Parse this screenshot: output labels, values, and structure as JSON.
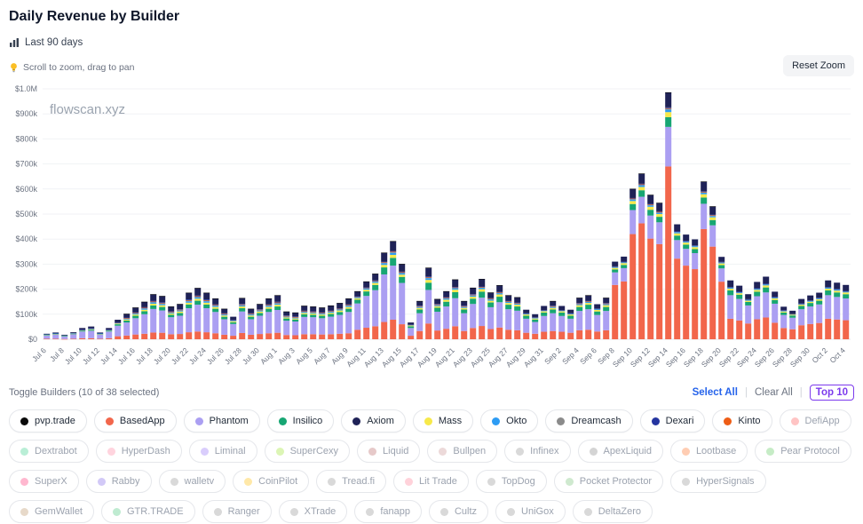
{
  "header": {
    "title": "Daily Revenue by Builder",
    "range_label": "Last 90 days",
    "hint": "Scroll to zoom, drag to pan",
    "reset_zoom_label": "Reset Zoom"
  },
  "watermark": "flowscan.xyz",
  "chart_data": {
    "type": "bar",
    "stacked": true,
    "title": "Daily Revenue by Builder",
    "xlabel": "",
    "ylabel": "",
    "ylim": [
      0,
      1000000
    ],
    "values_unit": "USD thousands",
    "grid": true,
    "y_tick_labels": [
      "$0",
      "$100k",
      "$200k",
      "$300k",
      "$400k",
      "$500k",
      "$600k",
      "$700k",
      "$800k",
      "$900k",
      "$1.0M"
    ],
    "x_tick_every": 2,
    "x": [
      "Jul 6",
      "Jul 7",
      "Jul 8",
      "Jul 9",
      "Jul 10",
      "Jul 11",
      "Jul 12",
      "Jul 13",
      "Jul 14",
      "Jul 15",
      "Jul 16",
      "Jul 17",
      "Jul 18",
      "Jul 19",
      "Jul 20",
      "Jul 21",
      "Jul 22",
      "Jul 23",
      "Jul 24",
      "Jul 25",
      "Jul 26",
      "Jul 27",
      "Jul 28",
      "Jul 29",
      "Jul 30",
      "Jul 31",
      "Aug 1",
      "Aug 2",
      "Aug 3",
      "Aug 4",
      "Aug 5",
      "Aug 6",
      "Aug 7",
      "Aug 8",
      "Aug 9",
      "Aug 10",
      "Aug 11",
      "Aug 12",
      "Aug 13",
      "Aug 14",
      "Aug 15",
      "Aug 16",
      "Aug 17",
      "Aug 18",
      "Aug 19",
      "Aug 20",
      "Aug 21",
      "Aug 22",
      "Aug 23",
      "Aug 24",
      "Aug 25",
      "Aug 26",
      "Aug 27",
      "Aug 28",
      "Aug 29",
      "Aug 30",
      "Aug 31",
      "Sep 1",
      "Sep 2",
      "Sep 3",
      "Sep 4",
      "Sep 5",
      "Sep 6",
      "Sep 7",
      "Sep 8",
      "Sep 9",
      "Sep 10",
      "Sep 11",
      "Sep 12",
      "Sep 13",
      "Sep 14",
      "Sep 15",
      "Sep 16",
      "Sep 17",
      "Sep 18",
      "Sep 19",
      "Sep 20",
      "Sep 21",
      "Sep 22",
      "Sep 23",
      "Sep 24",
      "Sep 25",
      "Sep 26",
      "Sep 27",
      "Sep 28",
      "Sep 29",
      "Sep 30",
      "Oct 1",
      "Oct 2",
      "Oct 3",
      "Oct 4"
    ],
    "stack_order_bottom_to_top": [
      "BasedApp",
      "Phantom",
      "Insilico",
      "Mass",
      "Okto",
      "Dreamcash",
      "Kinto",
      "Dexari",
      "Axiom",
      "pvp.trade"
    ],
    "series": [
      {
        "name": "BasedApp",
        "color": "#f2664b",
        "values": [
          2,
          2,
          1,
          2,
          4,
          4,
          2,
          4,
          12,
          15,
          19,
          22,
          27,
          26,
          20,
          21,
          28,
          31,
          28,
          24,
          18,
          14,
          25,
          18,
          21,
          24,
          26,
          17,
          16,
          20,
          20,
          19,
          20,
          22,
          24,
          38,
          46,
          52,
          69,
          78,
          60,
          14,
          33,
          63,
          35,
          42,
          52,
          33,
          45,
          53,
          41,
          47,
          38,
          36,
          26,
          22,
          30,
          33,
          30,
          26,
          36,
          38,
          31,
          36,
          217,
          231,
          420,
          463,
          402,
          380,
          690,
          322,
          294,
          280,
          440,
          370,
          230,
          82,
          75,
          63,
          80,
          87,
          66,
          45,
          40,
          56,
          61,
          65,
          82,
          79,
          76
        ]
      },
      {
        "name": "Phantom",
        "color": "#ab9ff2",
        "values": [
          13,
          17,
          11,
          18,
          27,
          30,
          17,
          27,
          42,
          52,
          65,
          78,
          94,
          89,
          68,
          73,
          96,
          107,
          96,
          85,
          62,
          47,
          86,
          62,
          73,
          85,
          91,
          57,
          55,
          69,
          68,
          65,
          70,
          75,
          85,
          105,
          127,
          144,
          190,
          216,
          165,
          31,
          71,
          134,
          75,
          89,
          112,
          71,
          96,
          113,
          87,
          101,
          82,
          78,
          56,
          47,
          63,
          71,
          63,
          56,
          77,
          82,
          66,
          77,
          50,
          53,
          96,
          106,
          92,
          87,
          158,
          74,
          67,
          64,
          101,
          85,
          53,
          94,
          86,
          72,
          92,
          100,
          76,
          52,
          46,
          64,
          70,
          74,
          94,
          90,
          87
        ]
      },
      {
        "name": "Insilico",
        "color": "#17a673",
        "values": [
          2,
          2,
          1,
          2,
          3,
          4,
          2,
          3,
          6,
          8,
          10,
          12,
          14,
          14,
          10,
          11,
          15,
          16,
          15,
          13,
          10,
          7,
          13,
          10,
          11,
          13,
          14,
          9,
          8,
          11,
          10,
          10,
          11,
          12,
          13,
          15,
          18,
          21,
          28,
          31,
          24,
          7,
          15,
          29,
          16,
          19,
          24,
          15,
          21,
          24,
          19,
          22,
          18,
          17,
          12,
          10,
          14,
          15,
          14,
          12,
          16,
          18,
          14,
          16,
          12,
          13,
          24,
          26,
          23,
          22,
          39,
          18,
          17,
          16,
          25,
          21,
          13,
          19,
          17,
          14,
          18,
          20,
          15,
          10,
          9,
          13,
          14,
          15,
          19,
          18,
          17
        ]
      },
      {
        "name": "Axiom",
        "color": "#1f2257",
        "values": [
          3,
          4,
          3,
          4,
          6,
          7,
          4,
          6,
          11,
          14,
          18,
          21,
          25,
          24,
          18,
          20,
          26,
          29,
          26,
          23,
          17,
          13,
          23,
          17,
          20,
          23,
          25,
          15,
          15,
          19,
          18,
          18,
          19,
          20,
          23,
          19,
          23,
          26,
          35,
          39,
          30,
          8,
          18,
          34,
          19,
          23,
          29,
          18,
          25,
          29,
          22,
          26,
          21,
          20,
          14,
          12,
          16,
          18,
          16,
          14,
          20,
          21,
          17,
          20,
          19,
          20,
          36,
          40,
          35,
          33,
          59,
          28,
          25,
          24,
          38,
          32,
          20,
          26,
          24,
          20,
          25,
          28,
          21,
          14,
          13,
          18,
          19,
          20,
          26,
          25,
          24
        ]
      },
      {
        "name": "Mass",
        "color": "#f7e94a",
        "values": [
          1,
          1,
          1,
          1,
          2,
          2,
          1,
          2,
          3,
          4,
          5,
          6,
          7,
          7,
          5,
          6,
          7,
          8,
          7,
          7,
          5,
          4,
          7,
          5,
          6,
          7,
          7,
          4,
          4,
          5,
          5,
          5,
          5,
          6,
          7,
          6,
          7,
          8,
          10,
          12,
          9,
          3,
          6,
          11,
          6,
          8,
          10,
          6,
          8,
          10,
          7,
          9,
          7,
          7,
          5,
          4,
          5,
          6,
          5,
          5,
          7,
          7,
          6,
          7,
          6,
          7,
          12,
          13,
          12,
          11,
          20,
          9,
          8,
          8,
          13,
          11,
          7,
          7,
          6,
          5,
          7,
          8,
          6,
          4,
          3,
          5,
          5,
          6,
          7,
          7,
          7
        ]
      },
      {
        "name": "Okto",
        "color": "#2d9cf4",
        "values": [
          1,
          1,
          1,
          1,
          1,
          2,
          1,
          1,
          2,
          3,
          4,
          5,
          5,
          5,
          4,
          4,
          6,
          6,
          6,
          5,
          4,
          3,
          5,
          4,
          4,
          5,
          5,
          3,
          3,
          4,
          4,
          4,
          4,
          4,
          5,
          4,
          5,
          5,
          7,
          8,
          6,
          2,
          4,
          7,
          4,
          5,
          6,
          4,
          5,
          6,
          5,
          5,
          4,
          4,
          3,
          3,
          3,
          4,
          3,
          3,
          4,
          4,
          4,
          4,
          3,
          3,
          6,
          7,
          6,
          5,
          10,
          5,
          4,
          4,
          6,
          5,
          3,
          5,
          4,
          4,
          5,
          5,
          4,
          3,
          2,
          3,
          4,
          4,
          5,
          5,
          4
        ]
      },
      {
        "name": "Dreamcash",
        "color": "#8b8b8b",
        "values": [
          0,
          0,
          0,
          0,
          1,
          1,
          0,
          1,
          1,
          2,
          2,
          2,
          3,
          3,
          2,
          2,
          3,
          3,
          3,
          2,
          2,
          1,
          2,
          2,
          2,
          2,
          3,
          2,
          2,
          2,
          2,
          2,
          2,
          2,
          2,
          2,
          2,
          3,
          3,
          4,
          3,
          1,
          2,
          3,
          2,
          2,
          2,
          2,
          2,
          2,
          2,
          2,
          2,
          2,
          1,
          1,
          1,
          2,
          1,
          1,
          2,
          2,
          1,
          2,
          2,
          2,
          3,
          3,
          3,
          3,
          5,
          2,
          2,
          2,
          3,
          3,
          2,
          1,
          1,
          1,
          1,
          1,
          1,
          1,
          1,
          1,
          1,
          1,
          1,
          1,
          1
        ]
      },
      {
        "name": "Dexari",
        "color": "#2535a0",
        "values": [
          0,
          0,
          0,
          0,
          1,
          1,
          0,
          1,
          1,
          2,
          2,
          2,
          3,
          3,
          2,
          2,
          3,
          3,
          3,
          2,
          2,
          1,
          2,
          2,
          2,
          2,
          3,
          2,
          2,
          2,
          2,
          2,
          2,
          2,
          2,
          1,
          1,
          1,
          2,
          2,
          2,
          1,
          2,
          3,
          2,
          2,
          2,
          2,
          2,
          2,
          2,
          2,
          2,
          2,
          1,
          1,
          1,
          2,
          1,
          1,
          2,
          2,
          1,
          2,
          1,
          1,
          2,
          2,
          2,
          2,
          3,
          1,
          1,
          1,
          2,
          2,
          1,
          1,
          1,
          1,
          1,
          1,
          1,
          1,
          0,
          1,
          1,
          1,
          1,
          1,
          1
        ]
      },
      {
        "name": "Kinto",
        "color": "#ee5d16",
        "values": [
          0,
          0,
          0,
          0,
          0,
          0,
          0,
          0,
          0,
          1,
          1,
          1,
          1,
          1,
          1,
          1,
          1,
          1,
          1,
          1,
          1,
          0,
          1,
          1,
          1,
          1,
          1,
          1,
          1,
          1,
          1,
          1,
          1,
          1,
          1,
          1,
          1,
          1,
          1,
          1,
          1,
          0,
          1,
          1,
          1,
          1,
          1,
          1,
          1,
          1,
          1,
          1,
          1,
          1,
          0,
          0,
          0,
          1,
          0,
          0,
          1,
          1,
          0,
          1,
          0,
          0,
          1,
          1,
          1,
          1,
          1,
          0,
          0,
          0,
          1,
          1,
          0,
          0,
          0,
          0,
          0,
          0,
          0,
          0,
          0,
          0,
          0,
          0,
          0,
          0,
          0
        ]
      },
      {
        "name": "pvp.trade",
        "color": "#0a0a0a",
        "values": [
          0,
          0,
          0,
          0,
          0,
          0,
          0,
          0,
          0,
          1,
          1,
          1,
          1,
          1,
          1,
          1,
          1,
          1,
          1,
          1,
          1,
          0,
          1,
          1,
          1,
          1,
          1,
          1,
          1,
          1,
          1,
          1,
          1,
          1,
          1,
          1,
          1,
          1,
          1,
          1,
          1,
          0,
          1,
          1,
          1,
          1,
          1,
          1,
          1,
          1,
          1,
          1,
          1,
          1,
          0,
          0,
          0,
          1,
          0,
          0,
          1,
          1,
          0,
          1,
          0,
          0,
          1,
          1,
          1,
          1,
          1,
          0,
          0,
          0,
          1,
          1,
          0,
          0,
          0,
          0,
          0,
          0,
          0,
          0,
          0,
          0,
          0,
          0,
          0,
          0,
          0
        ]
      }
    ]
  },
  "legend": {
    "toggle_label": "Toggle Builders (10 of 38 selected)",
    "actions": {
      "select_all": "Select All",
      "clear_all": "Clear All",
      "top10": "Top 10",
      "separator": "|"
    },
    "builders": [
      {
        "name": "pvp.trade",
        "color": "#0a0a0a",
        "selected": true
      },
      {
        "name": "BasedApp",
        "color": "#f2664b",
        "selected": true
      },
      {
        "name": "Phantom",
        "color": "#ab9ff2",
        "selected": true
      },
      {
        "name": "Insilico",
        "color": "#17a673",
        "selected": true
      },
      {
        "name": "Axiom",
        "color": "#1f2257",
        "selected": true
      },
      {
        "name": "Mass",
        "color": "#f7e94a",
        "selected": true
      },
      {
        "name": "Okto",
        "color": "#2d9cf4",
        "selected": true
      },
      {
        "name": "Dreamcash",
        "color": "#8b8b8b",
        "selected": true
      },
      {
        "name": "Dexari",
        "color": "#2535a0",
        "selected": true
      },
      {
        "name": "Kinto",
        "color": "#ee5d16",
        "selected": true
      },
      {
        "name": "DefiApp",
        "color": "#ffc4c4",
        "selected": false
      },
      {
        "name": "Dextrabot",
        "color": "#b9eed6",
        "selected": false
      },
      {
        "name": "HyperDash",
        "color": "#ffd4de",
        "selected": false
      },
      {
        "name": "Liminal",
        "color": "#d9cdfc",
        "selected": false
      },
      {
        "name": "SuperCexy",
        "color": "#dcf5b5",
        "selected": false
      },
      {
        "name": "Liquid",
        "color": "#e6c9c9",
        "selected": false
      },
      {
        "name": "Bullpen",
        "color": "#ecd9d9",
        "selected": false
      },
      {
        "name": "Infinex",
        "color": "#d9d9d9",
        "selected": false
      },
      {
        "name": "ApexLiquid",
        "color": "#d4d4d4",
        "selected": false
      },
      {
        "name": "Lootbase",
        "color": "#ffcdb3",
        "selected": false
      },
      {
        "name": "Pear Protocol",
        "color": "#c6ecc6",
        "selected": false
      },
      {
        "name": "SuperX",
        "color": "#ffb7cf",
        "selected": false
      },
      {
        "name": "Rabby",
        "color": "#d2c9f7",
        "selected": false
      },
      {
        "name": "walletv",
        "color": "#d9d9d9",
        "selected": false
      },
      {
        "name": "CoinPilot",
        "color": "#ffe8a8",
        "selected": false
      },
      {
        "name": "Tread.fi",
        "color": "#d9d9d9",
        "selected": false
      },
      {
        "name": "Lit Trade",
        "color": "#ffd2da",
        "selected": false
      },
      {
        "name": "TopDog",
        "color": "#d9d9d9",
        "selected": false
      },
      {
        "name": "Pocket Protector",
        "color": "#cfe9cf",
        "selected": false
      },
      {
        "name": "HyperSignals",
        "color": "#d9d9d9",
        "selected": false
      },
      {
        "name": "GemWallet",
        "color": "#e7d9c9",
        "selected": false
      },
      {
        "name": "GTR.TRADE",
        "color": "#bfebd1",
        "selected": false
      },
      {
        "name": "Ranger",
        "color": "#d9d9d9",
        "selected": false
      },
      {
        "name": "XTrade",
        "color": "#d9d9d9",
        "selected": false
      },
      {
        "name": "fanapp",
        "color": "#d9d9d9",
        "selected": false
      },
      {
        "name": "Cultz",
        "color": "#d9d9d9",
        "selected": false
      },
      {
        "name": "UniGox",
        "color": "#d9d9d9",
        "selected": false
      },
      {
        "name": "DeltaZero",
        "color": "#d9d9d9",
        "selected": false
      }
    ]
  }
}
